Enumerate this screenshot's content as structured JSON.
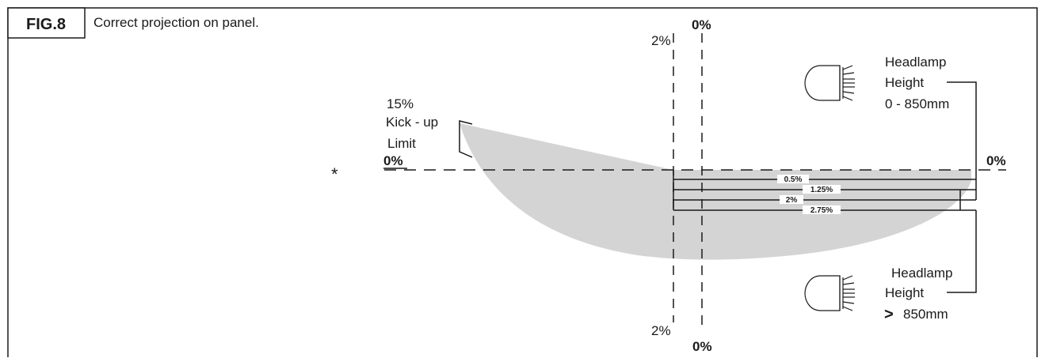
{
  "figure": {
    "label": "FIG.8",
    "caption": "Correct projection on panel."
  },
  "labels": {
    "top_zero": "0%",
    "top_two": "2%",
    "bottom_zero": "0%",
    "bottom_two": "2%",
    "left_zero": "0%",
    "right_zero": "0%",
    "asterisk": "*",
    "kickup_line1": "15%",
    "kickup_line2": "Kick - up",
    "kickup_line3": "Limit"
  },
  "cutoff_offsets": [
    "0.5%",
    "1.25%",
    "2%",
    "2.75%"
  ],
  "headlamp_upper": {
    "line1": "Headlamp",
    "line2": "Height",
    "line3": "0 - 850mm"
  },
  "headlamp_lower": {
    "line1": "Headlamp",
    "line2": "Height",
    "symbol": ">",
    "line3": "850mm"
  },
  "colors": {
    "beam_fill": "#d4d4d4",
    "line": "#1a1a1a"
  },
  "icons": [
    "headlamp-icon"
  ]
}
